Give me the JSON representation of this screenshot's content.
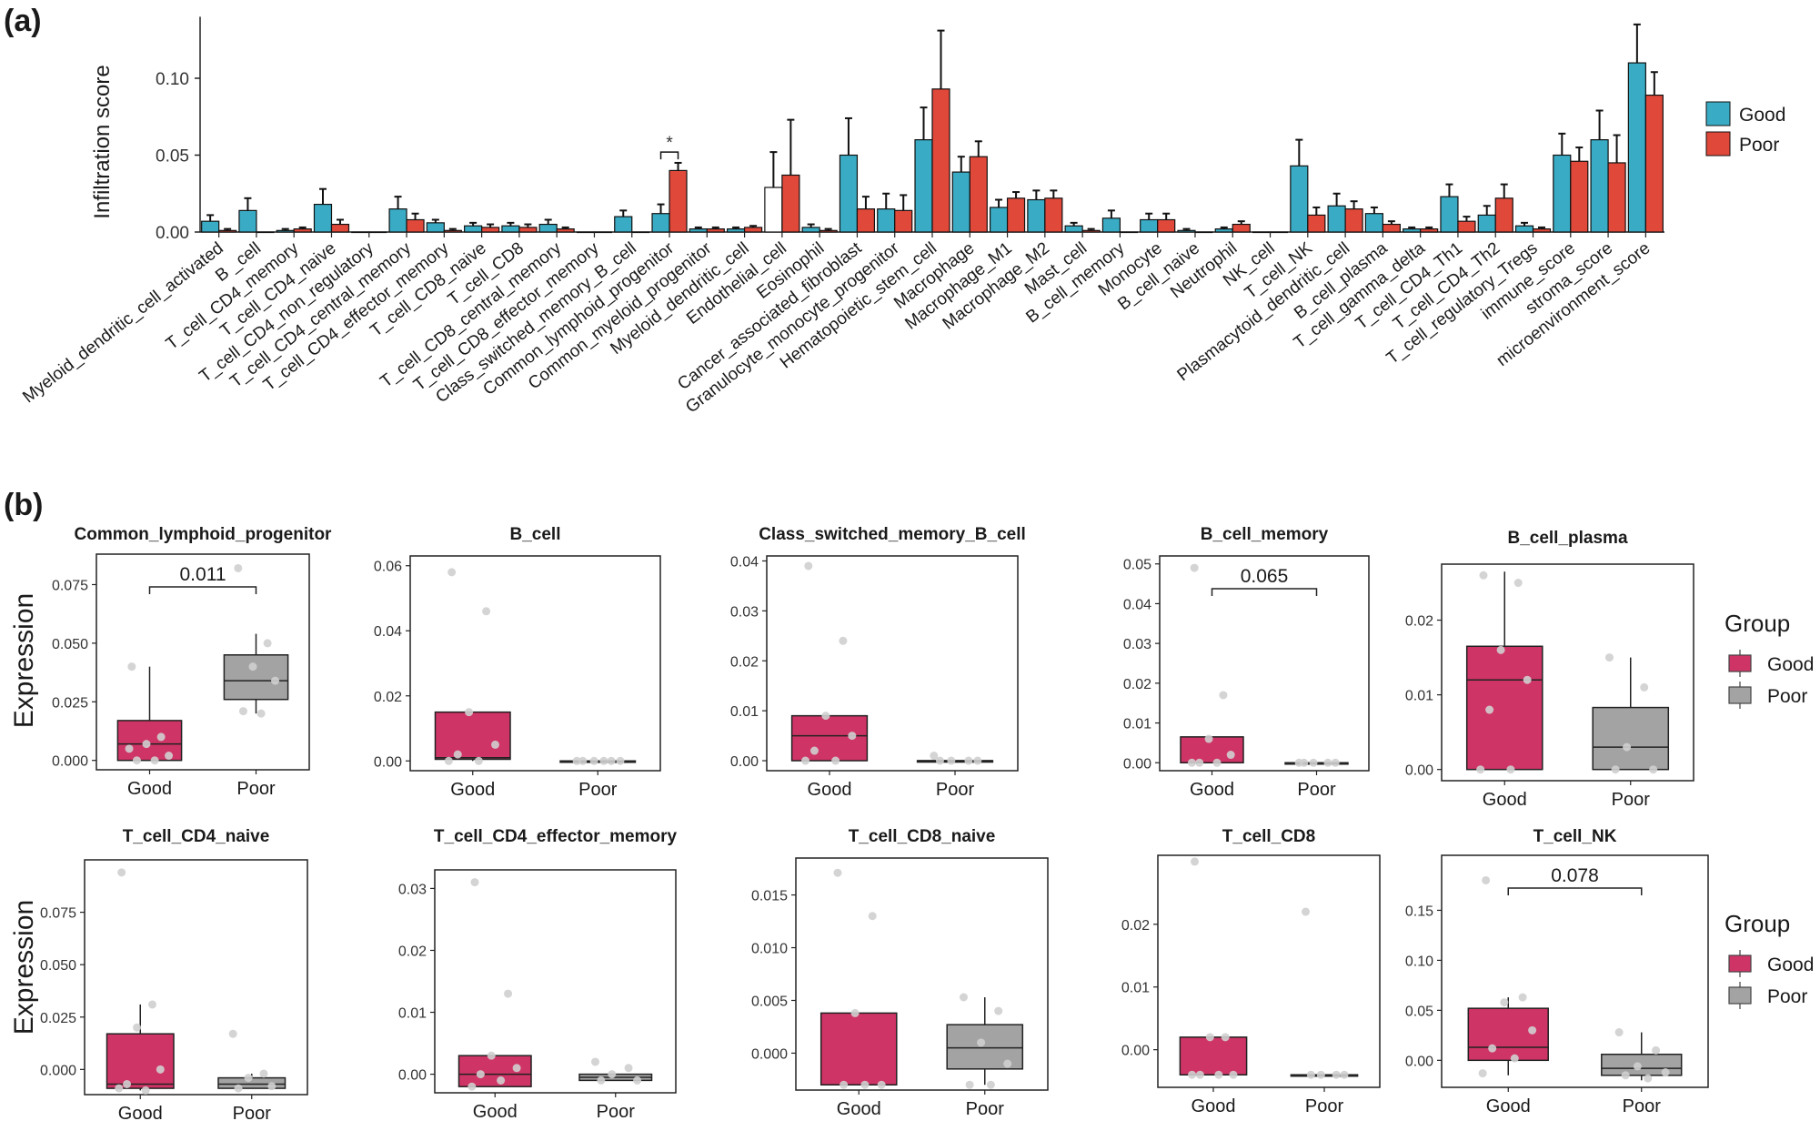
{
  "panels": {
    "a": "(a)",
    "b": "(b)"
  },
  "colors": {
    "good_bar": "#3AABC4",
    "poor_bar": "#E0483A",
    "good_box": "#CF3466",
    "poor_box": "#A3A3A3",
    "point": "#CFCFCF"
  },
  "chart_data": [
    {
      "type": "bar",
      "panel": "a",
      "ylabel": "Infiltration score",
      "yticks": [
        "0.00",
        "0.05",
        "0.10"
      ],
      "ylim": [
        0,
        0.14
      ],
      "legend": {
        "position": "right",
        "entries": [
          "Good",
          "Poor"
        ]
      },
      "categories": [
        "Myeloid_dendritic_cell_activated",
        "B_cell",
        "T_cell_CD4_memory",
        "T_cell_CD4_naive",
        "T_cell_CD4_non_regulatory",
        "T_cell_CD4_central_memory",
        "T_cell_CD4_effector_memory",
        "T_cell_CD8_naive",
        "T_cell_CD8",
        "T_cell_CD8_central_memory",
        "T_cell_CD8_effector_memory",
        "Class_switched_memory_B_cell",
        "Common_lymphoid_progenitor",
        "Common_myeloid_progenitor",
        "Myeloid_dendritic_cell",
        "Endothelial_cell",
        "Eosinophil",
        "Cancer_associated_fibroblast",
        "Granulocyte_monocyte_progenitor",
        "Hematopoietic_stem_cell",
        "Macrophage",
        "Macrophage_M1",
        "Macrophage_M2",
        "Mast_cell",
        "B_cell_memory",
        "Monocyte",
        "B_cell_naive",
        "Neutrophil",
        "NK_cell",
        "T_cell_NK",
        "Plasmacytoid_dendritic_cell",
        "B_cell_plasma",
        "T_cell_gamma_delta",
        "T_cell_CD4_Th1",
        "T_cell_CD4_Th2",
        "T_cell_regulatory_Tregs",
        "immune_score",
        "stroma_score",
        "microenvironment_score"
      ],
      "tick_labels": [
        "Myeloid_dendritic_cell_activated",
        "B _cell",
        "T_cell_CD4_memory",
        "T_cell_CD4_naive",
        "T_cell_CD4_non_regulatory",
        "T_cell_CD4_central_memory",
        "T_cell_CD4_effector_memory",
        "T_cell_CD8_naive",
        "T_cell_CD8",
        "T_cell_CD8_central_memory",
        "T_cell_CD8_effector_memory",
        "Class_switched_memory_B_cell",
        "Common_lymphoid_progenitor",
        "Common_myeloid_progenitor",
        "Myeloid_dendritic_cell",
        "Endothelial_cell",
        "Eosinophil",
        "Cancer_associated_fibroblast",
        "Granulocyte_monocyte_progenitor",
        "Hematopoietic_stem_cell",
        "Macrophage",
        "Macrophage_M1",
        "Macrophage_M2",
        "Mast_cell",
        "B_cell_memory",
        "Monocyte",
        "B_cell_naive",
        "Neutrophil",
        "NK_cell",
        "T_cell_NK",
        "Plasmacytoid_dendritic_cell",
        "B_cell_plasma",
        "T_cell_gamma_delta",
        "T_cell_CD4_Th1",
        "T_cell_CD4_Th2",
        "T_cell_regulatory_Tregs",
        "immune_score",
        "stroma_score",
        "microenvironment_score"
      ],
      "series": [
        {
          "name": "Good",
          "values": [
            0.007,
            0.014,
            0.001,
            0.018,
            0,
            0.015,
            0.006,
            0.004,
            0.004,
            0.005,
            0,
            0.01,
            0.012,
            0.002,
            0.002,
            0.029,
            0.003,
            0.05,
            0.015,
            0.06,
            0.039,
            0.016,
            0.021,
            0.004,
            0.009,
            0.008,
            0.001,
            0.002,
            0,
            0.043,
            0.017,
            0.012,
            0.002,
            0.023,
            0.011,
            0.004,
            0.05,
            0.06,
            0.11
          ],
          "errors": [
            0.004,
            0.008,
            0.001,
            0.01,
            0,
            0.008,
            0.002,
            0.002,
            0.002,
            0.003,
            0,
            0.004,
            0.006,
            0.001,
            0.001,
            0.023,
            0.002,
            0.024,
            0.01,
            0.021,
            0.01,
            0.005,
            0.006,
            0.002,
            0.005,
            0.004,
            0.001,
            0.001,
            0,
            0.017,
            0.008,
            0.004,
            0.001,
            0.008,
            0.006,
            0.002,
            0.014,
            0.019,
            0.025
          ]
        },
        {
          "name": "Poor",
          "values": [
            0.001,
            0,
            0.002,
            0.005,
            0,
            0.008,
            0.001,
            0.003,
            0.003,
            0.002,
            0,
            0,
            0.04,
            0.002,
            0.003,
            0.037,
            0.001,
            0.015,
            0.014,
            0.093,
            0.049,
            0.022,
            0.022,
            0.001,
            0,
            0.008,
            0,
            0.005,
            0,
            0.011,
            0.015,
            0.005,
            0.002,
            0.007,
            0.022,
            0.002,
            0.046,
            0.045,
            0.089
          ],
          "errors": [
            0.001,
            0,
            0.001,
            0.003,
            0,
            0.004,
            0.001,
            0.002,
            0.002,
            0.001,
            0,
            0,
            0.005,
            0.001,
            0.001,
            0.036,
            0.001,
            0.008,
            0.01,
            0.038,
            0.01,
            0.004,
            0.005,
            0.001,
            0,
            0.004,
            0,
            0.002,
            0,
            0.005,
            0.005,
            0.002,
            0.001,
            0.003,
            0.009,
            0.001,
            0.009,
            0.018,
            0.015
          ]
        }
      ],
      "annotations": [
        {
          "category": "Common_lymphoid_progenitor",
          "text": "*"
        }
      ]
    },
    {
      "type": "box",
      "panel": "b",
      "title": "Common_lymphoid_progenitor",
      "ylabel": "Expression",
      "yticks": [
        0,
        0.025,
        0.05,
        0.075
      ],
      "ytick_labels": [
        "0.000",
        "0.025",
        "0.050",
        "0.075"
      ],
      "ylim": [
        -0.004,
        0.088
      ],
      "groups": [
        "Good",
        "Poor"
      ],
      "pvalue": "0.011",
      "stats": [
        {
          "min": 0,
          "q1": 0,
          "median": 0.007,
          "q3": 0.017,
          "max": 0.04
        },
        {
          "min": 0.02,
          "q1": 0.026,
          "median": 0.034,
          "q3": 0.045,
          "max": 0.054
        }
      ],
      "points": [
        [
          0.04,
          0.01,
          0.007,
          0.002,
          0,
          0,
          0.005
        ],
        [
          0.082,
          0.05,
          0.04,
          0.034,
          0.021,
          0.02
        ]
      ]
    },
    {
      "type": "box",
      "panel": "b",
      "title": "B_cell",
      "yticks": [
        0,
        0.02,
        0.04,
        0.06
      ],
      "ytick_labels": [
        "0.00",
        "0.02",
        "0.04",
        "0.06"
      ],
      "ylim": [
        -0.003,
        0.063
      ],
      "groups": [
        "Good",
        "Poor"
      ],
      "stats": [
        {
          "min": 0,
          "q1": 0.0005,
          "median": 0.001,
          "q3": 0.015,
          "max": 0.015
        },
        {
          "min": 0,
          "q1": 0,
          "median": 0,
          "q3": 0,
          "max": 0
        }
      ],
      "points": [
        [
          0.058,
          0.046,
          0.015,
          0.005,
          0.002,
          0,
          0
        ],
        [
          0,
          0,
          0,
          0,
          0,
          0
        ]
      ]
    },
    {
      "type": "box",
      "panel": "b",
      "title": "Class_switched_memory_B_cell",
      "yticks": [
        0,
        0.01,
        0.02,
        0.03,
        0.04
      ],
      "ytick_labels": [
        "0.00",
        "0.01",
        "0.02",
        "0.03",
        "0.04"
      ],
      "ylim": [
        -0.002,
        0.041
      ],
      "groups": [
        "Good",
        "Poor"
      ],
      "stats": [
        {
          "min": 0,
          "q1": 0,
          "median": 0.005,
          "q3": 0.009,
          "max": 0.009
        },
        {
          "min": 0,
          "q1": 0,
          "median": 0,
          "q3": 0,
          "max": 0
        }
      ],
      "points": [
        [
          0.039,
          0.024,
          0.009,
          0.005,
          0.002,
          0,
          0
        ],
        [
          0.001,
          0,
          0,
          0,
          0
        ]
      ]
    },
    {
      "type": "box",
      "panel": "b",
      "title": "B_cell_memory",
      "yticks": [
        0,
        0.01,
        0.02,
        0.03,
        0.04,
        0.05
      ],
      "ytick_labels": [
        "0.00",
        "0.01",
        "0.02",
        "0.03",
        "0.04",
        "0.05"
      ],
      "ylim": [
        -0.002,
        0.052
      ],
      "groups": [
        "Good",
        "Poor"
      ],
      "pvalue": "0.065",
      "stats": [
        {
          "min": 0,
          "q1": 0,
          "median": 0,
          "q3": 0.0065,
          "max": 0.0065
        },
        {
          "min": 0,
          "q1": 0,
          "median": 0,
          "q3": 0,
          "max": 0
        }
      ],
      "points": [
        [
          0.049,
          0.017,
          0.006,
          0.002,
          0,
          0,
          0
        ],
        [
          0,
          0,
          0,
          0,
          0
        ]
      ]
    },
    {
      "type": "box",
      "panel": "b",
      "title": "B_cell_plasma",
      "yticks": [
        0,
        0.01,
        0.02
      ],
      "ytick_labels": [
        "0.00",
        "0.01",
        "0.02"
      ],
      "ylim": [
        -0.0015,
        0.0275
      ],
      "groups": [
        "Good",
        "Poor"
      ],
      "stats": [
        {
          "min": 0,
          "q1": 0,
          "median": 0.012,
          "q3": 0.0165,
          "max": 0.0265
        },
        {
          "min": 0,
          "q1": 0,
          "median": 0.003,
          "q3": 0.0083,
          "max": 0.015
        }
      ],
      "points": [
        [
          0.026,
          0.025,
          0.016,
          0.012,
          0.008,
          0,
          0
        ],
        [
          0.015,
          0.011,
          0.003,
          0,
          0
        ]
      ]
    },
    {
      "type": "box",
      "panel": "b",
      "title": "T_cell_CD4_naive",
      "yticks": [
        0,
        0.025,
        0.05,
        0.075
      ],
      "ytick_labels": [
        "0.000",
        "0.025",
        "0.050",
        "0.075"
      ],
      "ylim": [
        -0.012,
        0.1
      ],
      "groups": [
        "Good",
        "Poor"
      ],
      "stats": [
        {
          "min": -0.01,
          "q1": -0.009,
          "median": -0.007,
          "q3": 0.017,
          "max": 0.031
        },
        {
          "min": -0.009,
          "q1": -0.009,
          "median": -0.007,
          "q3": -0.004,
          "max": -0.002
        }
      ],
      "points": [
        [
          0.094,
          0.031,
          0.02,
          0.0,
          -0.007,
          -0.01,
          -0.009
        ],
        [
          0.017,
          -0.002,
          -0.004,
          -0.008,
          -0.009
        ]
      ]
    },
    {
      "type": "box",
      "panel": "b",
      "title": "T_cell_CD4_effector_memory",
      "yticks": [
        0,
        0.01,
        0.02,
        0.03
      ],
      "ytick_labels": [
        "0.00",
        "0.01",
        "0.02",
        "0.03"
      ],
      "ylim": [
        -0.003,
        0.033
      ],
      "groups": [
        "Good",
        "Poor"
      ],
      "stats": [
        {
          "min": -0.002,
          "q1": -0.002,
          "median": 0,
          "q3": 0.003,
          "max": 0.003
        },
        {
          "min": -0.001,
          "q1": -0.001,
          "median": -0.0005,
          "q3": 0,
          "max": 0
        }
      ],
      "points": [
        [
          0.031,
          0.013,
          0.003,
          0.001,
          0,
          -0.001,
          -0.002
        ],
        [
          0.002,
          0.001,
          0,
          -0.001,
          -0.001
        ]
      ]
    },
    {
      "type": "box",
      "panel": "b",
      "title": "T_cell_CD8_naive",
      "yticks": [
        0,
        0.005,
        0.01,
        0.015
      ],
      "ytick_labels": [
        "0.000",
        "0.005",
        "0.010",
        "0.015"
      ],
      "ylim": [
        -0.0035,
        0.0185
      ],
      "groups": [
        "Good",
        "Poor"
      ],
      "stats": [
        {
          "min": -0.003,
          "q1": -0.003,
          "median": -0.003,
          "q3": 0.0038,
          "max": 0.0038
        },
        {
          "min": -0.003,
          "q1": -0.0015,
          "median": 0.0005,
          "q3": 0.0027,
          "max": 0.0053
        }
      ],
      "points": [
        [
          0.0171,
          0.013,
          0.0038,
          -0.003,
          -0.003,
          -0.003
        ],
        [
          0.0053,
          0.004,
          0.001,
          -0.001,
          -0.003,
          -0.003
        ]
      ]
    },
    {
      "type": "box",
      "panel": "b",
      "title": "T_cell_CD8",
      "yticks": [
        0,
        0.01,
        0.02
      ],
      "ytick_labels": [
        "0.00",
        "0.01",
        "0.02"
      ],
      "ylim": [
        -0.006,
        0.031
      ],
      "groups": [
        "Good",
        "Poor"
      ],
      "stats": [
        {
          "min": -0.004,
          "q1": -0.004,
          "median": -0.004,
          "q3": 0.002,
          "max": 0.002
        },
        {
          "min": -0.004,
          "q1": -0.004,
          "median": -0.004,
          "q3": -0.004,
          "max": -0.004
        }
      ],
      "points": [
        [
          0.03,
          0.002,
          0.002,
          -0.004,
          -0.004,
          -0.004,
          -0.004
        ],
        [
          0.022,
          -0.004,
          -0.004,
          -0.004,
          -0.004
        ]
      ]
    },
    {
      "type": "box",
      "panel": "b",
      "title": "T_cell_NK",
      "yticks": [
        0,
        0.05,
        0.1,
        0.15
      ],
      "ytick_labels": [
        "0.00",
        "0.05",
        "0.10",
        "0.15"
      ],
      "ylim": [
        -0.027,
        0.205
      ],
      "groups": [
        "Good",
        "Poor"
      ],
      "pvalue": "0.078",
      "stats": [
        {
          "min": -0.015,
          "q1": 0,
          "median": 0.013,
          "q3": 0.052,
          "max": 0.063
        },
        {
          "min": -0.02,
          "q1": -0.015,
          "median": -0.008,
          "q3": 0.006,
          "max": 0.028
        }
      ],
      "points": [
        [
          0.18,
          0.063,
          0.058,
          0.03,
          0.012,
          0.002,
          -0.013
        ],
        [
          0.028,
          0.01,
          -0.006,
          -0.012,
          -0.015,
          -0.018
        ]
      ]
    }
  ],
  "legend_b": {
    "title": "Group",
    "entries": [
      "Good",
      "Poor"
    ]
  }
}
